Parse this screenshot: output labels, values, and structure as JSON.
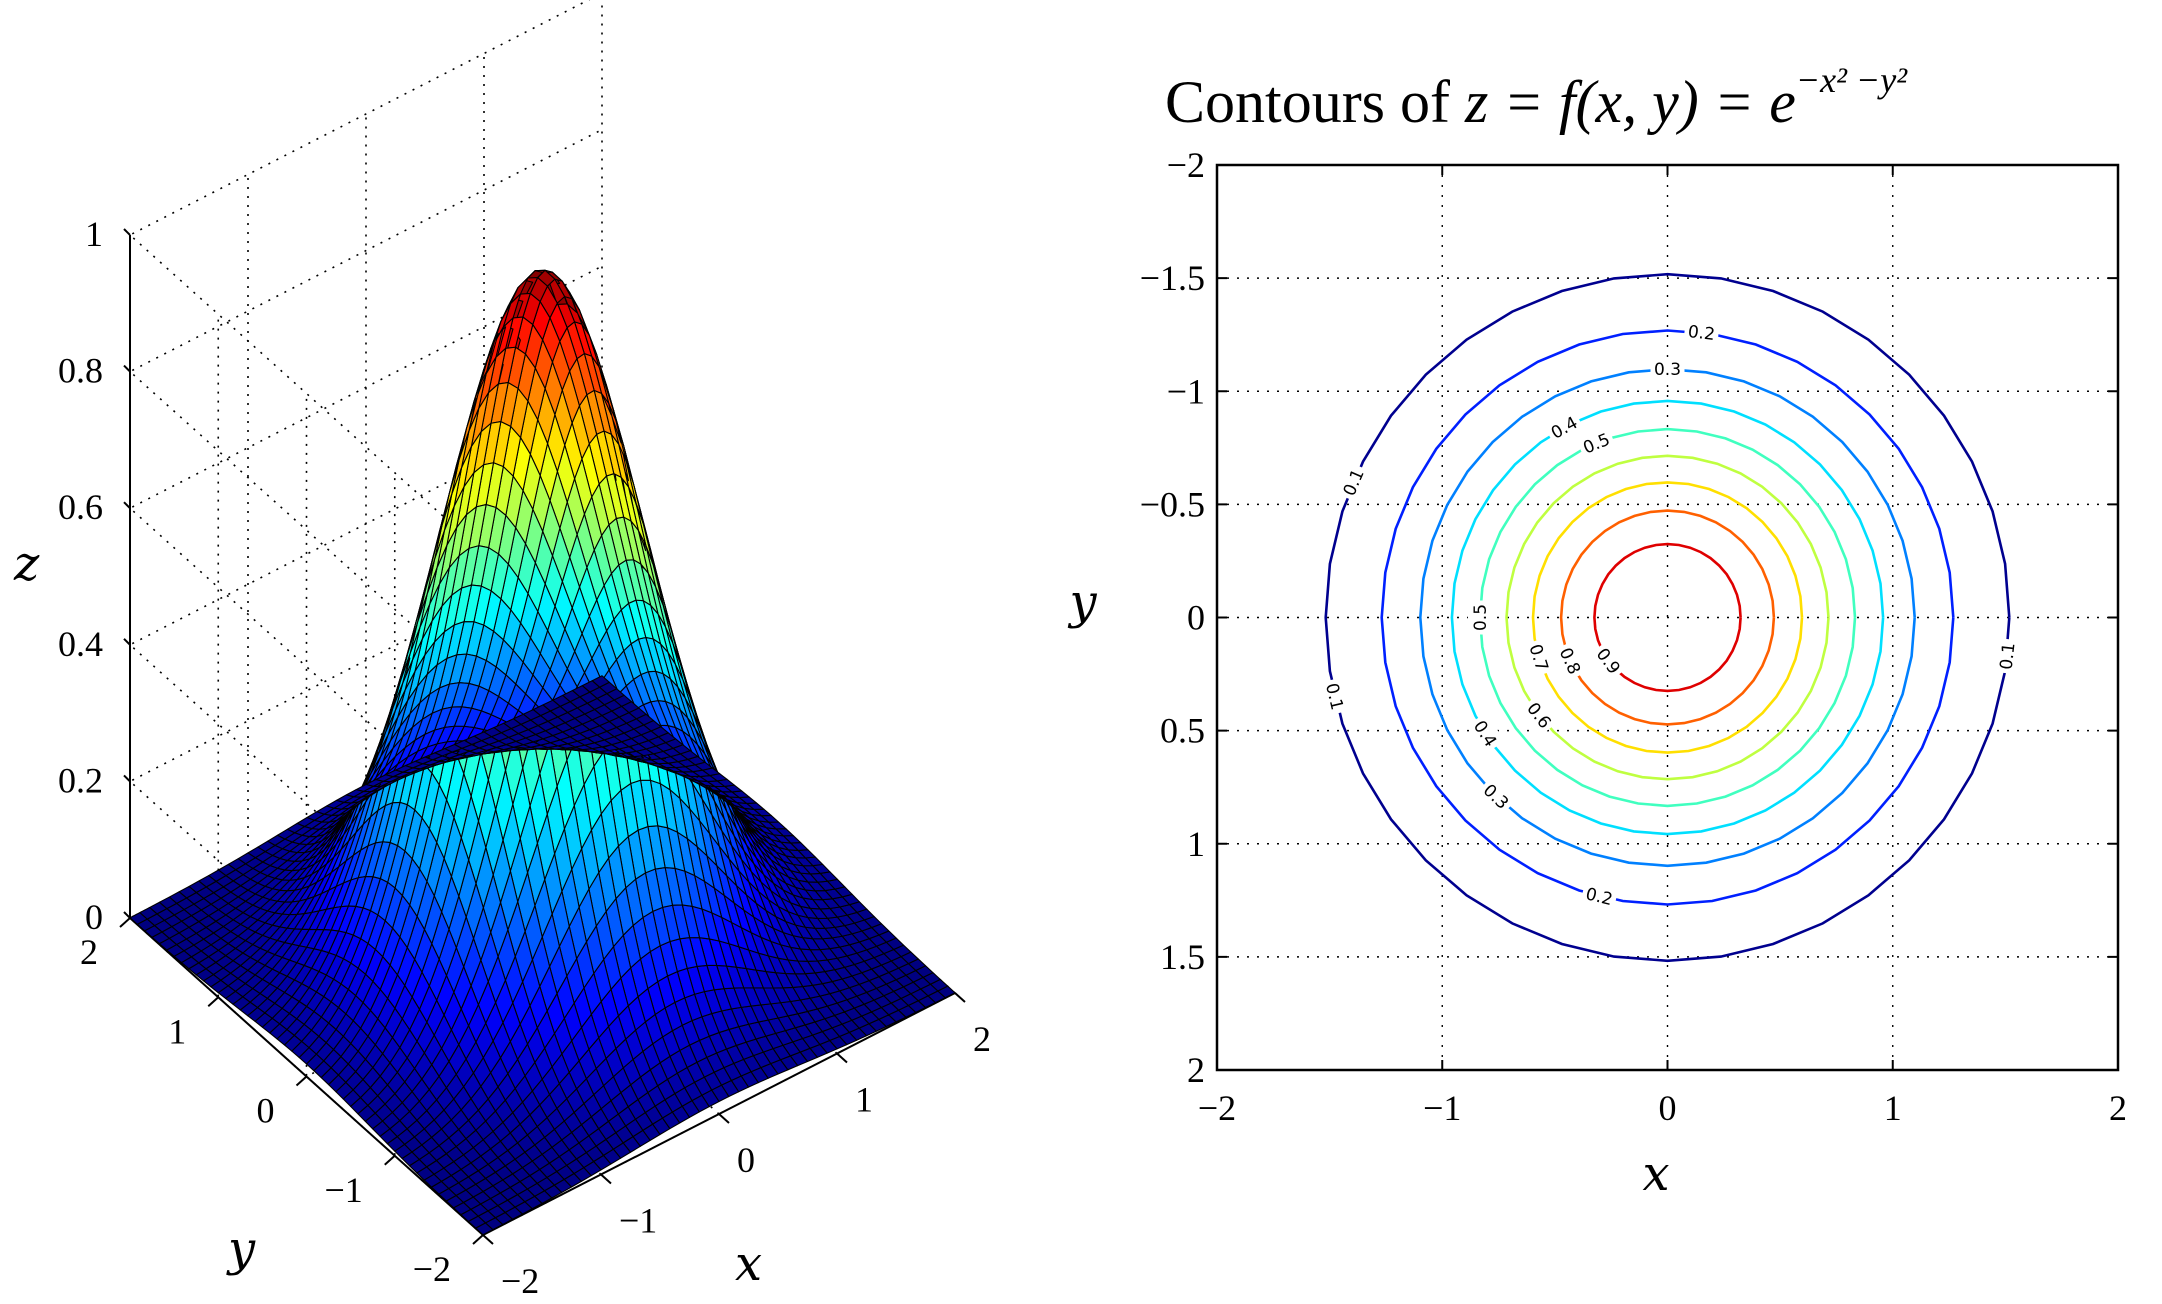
{
  "chart_data": [
    {
      "type": "surface",
      "function": "z = exp(-x^2 - y^2)",
      "x": {
        "label": "x",
        "range": [
          -2,
          2
        ],
        "ticks": [
          -2,
          -1,
          0,
          1,
          2
        ]
      },
      "y": {
        "label": "y",
        "range": [
          -2,
          2
        ],
        "ticks": [
          -2,
          -1,
          0,
          1,
          2
        ]
      },
      "z": {
        "label": "z",
        "range": [
          0,
          1
        ],
        "ticks": [
          0,
          0.2,
          0.4,
          0.6,
          0.8,
          1
        ]
      },
      "grid": true,
      "colormap": "jet"
    },
    {
      "type": "contour",
      "title_text": "Contours of ",
      "title_math": "z = f(x, y) = e",
      "title_exponent": "−x² −y²",
      "function": "z = exp(-x^2 - y^2)",
      "x": {
        "label": "x",
        "range": [
          -2,
          2
        ],
        "ticks": [
          -2,
          -1,
          0,
          1,
          2
        ]
      },
      "y": {
        "label": "y",
        "range": [
          -2,
          2
        ],
        "ticks": [
          -2,
          -1.5,
          -1,
          -0.5,
          0,
          0.5,
          1,
          1.5,
          2
        ]
      },
      "levels": [
        0.1,
        0.2,
        0.3,
        0.4,
        0.5,
        0.6,
        0.7,
        0.8,
        0.9
      ],
      "level_colors": [
        "#00008f",
        "#0020ff",
        "#0080ff",
        "#00dfff",
        "#40ffbf",
        "#bfff40",
        "#ffdf00",
        "#ff6000",
        "#df0000"
      ],
      "level_labels": [
        {
          "text": "0.1",
          "level": 0.1,
          "x": -1.4,
          "y": 0.6
        },
        {
          "text": "0.1",
          "level": 0.1,
          "x": -1.48,
          "y": -0.35
        },
        {
          "text": "0.1",
          "level": 0.1,
          "x": 1.5,
          "y": -0.17
        },
        {
          "text": "0.2",
          "level": 0.2,
          "x": 0.15,
          "y": 1.25
        },
        {
          "text": "0.2",
          "level": 0.2,
          "x": -0.3,
          "y": -1.22
        },
        {
          "text": "0.3",
          "level": 0.3,
          "x": 0.0,
          "y": 1.1
        },
        {
          "text": "0.3",
          "level": 0.3,
          "x": -0.75,
          "y": -0.78
        },
        {
          "text": "0.4",
          "level": 0.4,
          "x": -0.47,
          "y": 0.86
        },
        {
          "text": "0.4",
          "level": 0.4,
          "x": -0.82,
          "y": -0.52
        },
        {
          "text": "0.5",
          "level": 0.5,
          "x": -0.32,
          "y": 0.78
        },
        {
          "text": "0.5",
          "level": 0.5,
          "x": -0.84,
          "y": 0.0
        },
        {
          "text": "0.6",
          "level": 0.6,
          "x": -0.58,
          "y": -0.44
        },
        {
          "text": "0.7",
          "level": 0.7,
          "x": -0.58,
          "y": -0.18
        },
        {
          "text": "0.8",
          "level": 0.8,
          "x": -0.45,
          "y": -0.2
        },
        {
          "text": "0.9",
          "level": 0.9,
          "x": -0.3,
          "y": -0.22
        }
      ],
      "tick_labels_x": [
        "−2",
        "−1",
        "0",
        "1",
        "2"
      ],
      "tick_labels_y": [
        "2",
        "1.5",
        "1",
        "0.5",
        "0",
        "−0.5",
        "−1",
        "−1.5",
        "−2"
      ],
      "grid": true
    }
  ],
  "surface_tick_labels": {
    "z": [
      "0",
      "0.2",
      "0.4",
      "0.6",
      "0.8",
      "1"
    ],
    "x": [
      "−2",
      "−1",
      "0",
      "1",
      "2"
    ],
    "y": [
      "−2",
      "−1",
      "0",
      "1",
      "2"
    ]
  }
}
